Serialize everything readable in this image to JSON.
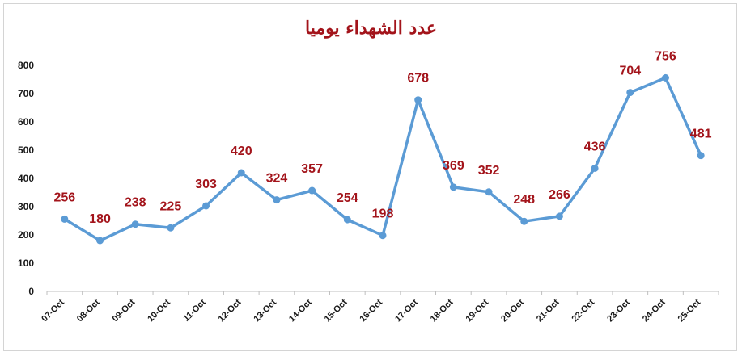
{
  "chart_data": {
    "type": "line",
    "title": "عدد الشهداء يوميا",
    "xlabel": "",
    "ylabel": "",
    "ylim": [
      0,
      800
    ],
    "yticks": [
      0,
      100,
      200,
      300,
      400,
      500,
      600,
      700,
      800
    ],
    "grid": false,
    "categories": [
      "07-Oct",
      "08-Oct",
      "09-Oct",
      "10-Oct",
      "11-Oct",
      "12-Oct",
      "13-Oct",
      "14-Oct",
      "15-Oct",
      "16-Oct",
      "17-Oct",
      "18-Oct",
      "19-Oct",
      "20-Oct",
      "21-Oct",
      "22-Oct",
      "23-Oct",
      "24-Oct",
      "25-Oct"
    ],
    "series": [
      {
        "values": [
          256,
          180,
          238,
          225,
          303,
          420,
          324,
          357,
          254,
          198,
          678,
          369,
          352,
          248,
          266,
          436,
          704,
          756,
          481
        ],
        "color": "#5b9bd5"
      }
    ],
    "label_color": "#a3141b"
  }
}
